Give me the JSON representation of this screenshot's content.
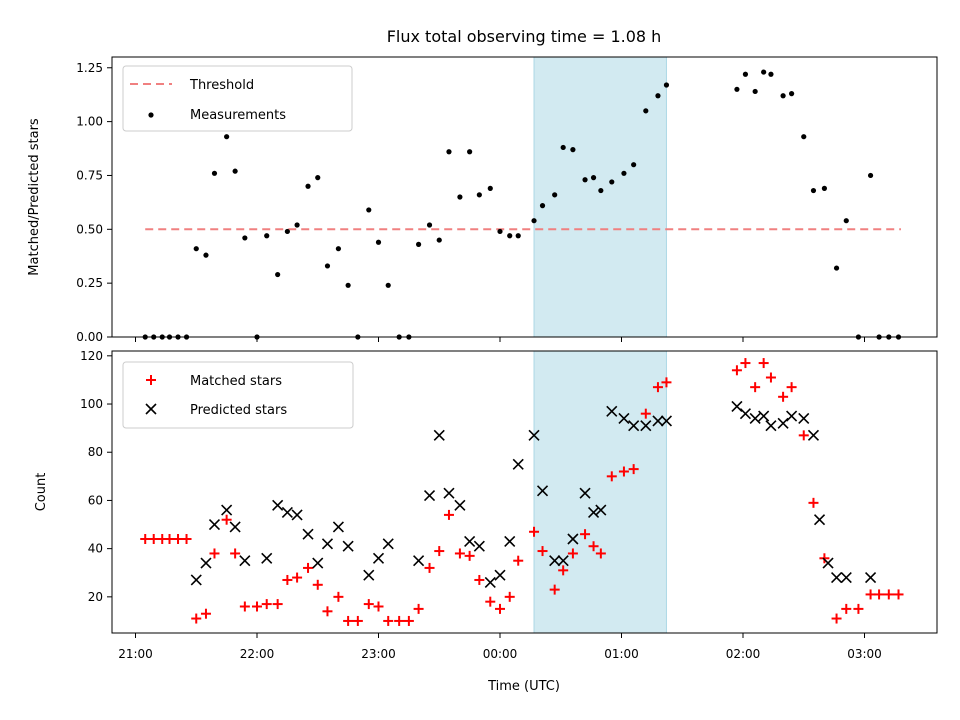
{
  "chart_data": {
    "type": "scatter",
    "title": "Flux total observing time = 1.08 h",
    "xlabel": "Time (UTC)",
    "x_ticks": [
      "21:00",
      "22:00",
      "23:00",
      "00:00",
      "01:00",
      "02:00",
      "03:00"
    ],
    "shaded_region": {
      "from_hour": 0.28,
      "to_hour": 1.37,
      "color": "#add8e6"
    },
    "top": {
      "ylabel": "Matched/Predicted stars",
      "ylim": [
        0,
        1.3
      ],
      "y_ticks": [
        "0.00",
        "0.25",
        "0.50",
        "0.75",
        "1.00",
        "1.25"
      ],
      "legend": [
        "Threshold",
        "Measurements"
      ],
      "threshold": {
        "value": 0.5,
        "from_hour": -2.92,
        "to_hour": 3.3,
        "color": "#f08080"
      },
      "series": {
        "name": "Measurements",
        "color": "#000000",
        "x": [
          -2.92,
          -2.85,
          -2.78,
          -2.72,
          -2.65,
          -2.58,
          -2.5,
          -2.42,
          -2.35,
          -2.25,
          -2.18,
          -2.1,
          -2.0,
          -1.92,
          -1.83,
          -1.75,
          -1.67,
          -1.58,
          -1.5,
          -1.42,
          -1.33,
          -1.25,
          -1.17,
          -1.08,
          -1.0,
          -0.92,
          -0.83,
          -0.75,
          -0.67,
          -0.58,
          -0.5,
          -0.42,
          -0.33,
          -0.25,
          -0.17,
          -0.08,
          0.0,
          0.08,
          0.15,
          0.28,
          0.35,
          0.45,
          0.52,
          0.6,
          0.7,
          0.77,
          0.83,
          0.92,
          1.02,
          1.1,
          1.2,
          1.3,
          1.37,
          1.95,
          2.02,
          2.1,
          2.17,
          2.23,
          2.33,
          2.4,
          2.5,
          2.58,
          2.67,
          2.77,
          2.85,
          2.95,
          3.05,
          3.12,
          3.2,
          3.28
        ],
        "y": [
          0,
          0,
          0,
          0,
          0,
          0,
          0.41,
          0.38,
          0.76,
          0.93,
          0.77,
          0.46,
          0,
          0.47,
          0.29,
          0.49,
          0.52,
          0.7,
          0.74,
          0.33,
          0.41,
          0.24,
          0,
          0.59,
          0.44,
          0.24,
          0,
          0,
          0.43,
          0.52,
          0.45,
          0.86,
          0.65,
          0.86,
          0.66,
          0.69,
          0.49,
          0.47,
          0.47,
          0.54,
          0.61,
          0.66,
          0.88,
          0.87,
          0.73,
          0.74,
          0.68,
          0.72,
          0.76,
          0.8,
          1.05,
          1.12,
          1.17,
          1.15,
          1.22,
          1.14,
          1.23,
          1.22,
          1.12,
          1.13,
          0.93,
          0.68,
          0.69,
          0.32,
          0.54,
          0,
          0.75,
          0,
          0,
          0
        ]
      }
    },
    "bottom": {
      "ylabel": "Count",
      "ylim": [
        5,
        122
      ],
      "y_ticks": [
        "20",
        "40",
        "60",
        "80",
        "100",
        "120"
      ],
      "legend": [
        "Matched stars",
        "Predicted stars"
      ],
      "series": [
        {
          "name": "Matched stars",
          "marker": "+",
          "color": "#ff0000",
          "x": [
            -2.92,
            -2.85,
            -2.78,
            -2.72,
            -2.65,
            -2.58,
            -2.5,
            -2.42,
            -2.35,
            -2.25,
            -2.18,
            -2.1,
            -2.0,
            -1.92,
            -1.83,
            -1.75,
            -1.67,
            -1.58,
            -1.5,
            -1.42,
            -1.33,
            -1.25,
            -1.17,
            -1.08,
            -1.0,
            -0.92,
            -0.83,
            -0.75,
            -0.67,
            -0.58,
            -0.5,
            -0.42,
            -0.33,
            -0.25,
            -0.17,
            -0.08,
            0.0,
            0.08,
            0.15,
            0.28,
            0.35,
            0.45,
            0.52,
            0.6,
            0.7,
            0.77,
            0.83,
            0.92,
            1.02,
            1.1,
            1.2,
            1.3,
            1.37,
            1.95,
            2.02,
            2.1,
            2.17,
            2.23,
            2.33,
            2.4,
            2.5,
            2.58,
            2.67,
            2.77,
            2.85,
            2.95,
            3.05,
            3.12,
            3.2,
            3.28
          ],
          "y": [
            44,
            44,
            44,
            44,
            44,
            44,
            11,
            13,
            38,
            52,
            38,
            16,
            16,
            17,
            17,
            27,
            28,
            32,
            25,
            14,
            20,
            10,
            10,
            17,
            16,
            10,
            10,
            10,
            15,
            32,
            39,
            54,
            38,
            37,
            27,
            18,
            15,
            20,
            35,
            47,
            39,
            23,
            31,
            38,
            46,
            41,
            38,
            70,
            72,
            73,
            96,
            107,
            109,
            114,
            117,
            107,
            117,
            111,
            103,
            107,
            87,
            59,
            36,
            11,
            15,
            15,
            21,
            21,
            21,
            21
          ]
        },
        {
          "name": "Predicted stars",
          "marker": "x",
          "color": "#000000",
          "x": [
            -2.5,
            -2.42,
            -2.35,
            -2.25,
            -2.18,
            -2.1,
            -1.92,
            -1.83,
            -1.75,
            -1.67,
            -1.58,
            -1.5,
            -1.42,
            -1.33,
            -1.25,
            -1.08,
            -1.0,
            -0.92,
            -0.67,
            -0.58,
            -0.5,
            -0.42,
            -0.33,
            -0.25,
            -0.17,
            -0.08,
            0.0,
            0.08,
            0.15,
            0.28,
            0.35,
            0.45,
            0.52,
            0.6,
            0.7,
            0.77,
            0.83,
            0.92,
            1.02,
            1.1,
            1.2,
            1.3,
            1.37,
            1.95,
            2.02,
            2.1,
            2.17,
            2.23,
            2.33,
            2.4,
            2.5,
            2.58,
            2.63,
            2.7,
            2.77,
            2.85,
            3.05
          ],
          "y": [
            27,
            34,
            50,
            56,
            49,
            35,
            36,
            58,
            55,
            54,
            46,
            34,
            42,
            49,
            41,
            29,
            36,
            42,
            35,
            62,
            87,
            63,
            58,
            43,
            41,
            26,
            29,
            43,
            75,
            87,
            64,
            35,
            35,
            44,
            63,
            55,
            56,
            97,
            94,
            91,
            91,
            93,
            93,
            99,
            96,
            94,
            95,
            91,
            92,
            95,
            94,
            87,
            52,
            34,
            28,
            28,
            28
          ]
        }
      ]
    }
  }
}
